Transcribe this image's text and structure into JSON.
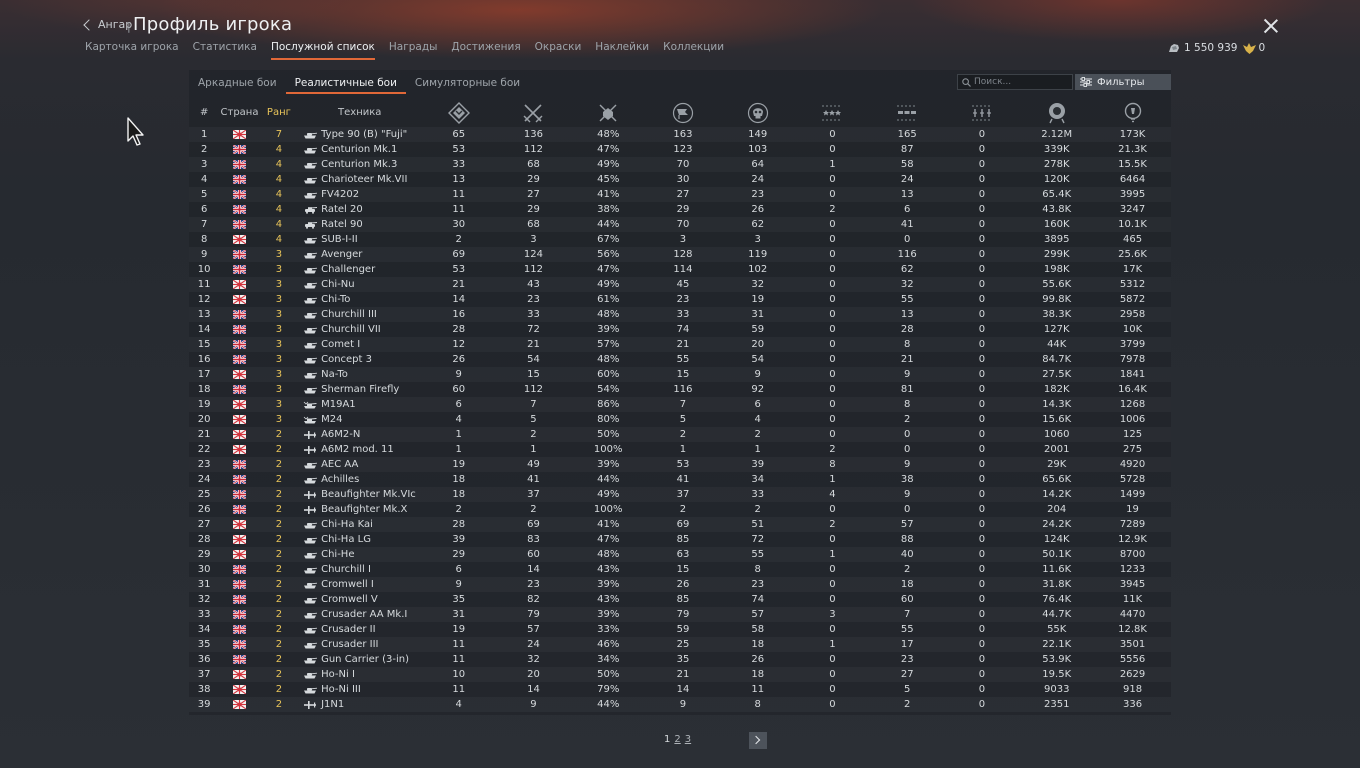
{
  "header": {
    "back_label": "Ангар",
    "separator": "|",
    "title": "Профиль игрока",
    "tabs": [
      "Карточка игрока",
      "Статистика",
      "Послужной список",
      "Награды",
      "Достижения",
      "Окраски",
      "Наклейки",
      "Коллекции"
    ],
    "active_tab": 2,
    "silver_lions": "1 550 939",
    "golden_eagles": "0"
  },
  "subtabs": {
    "items": [
      "Аркадные бои",
      "Реалистичные бои",
      "Симуляторные бои"
    ],
    "active": 1
  },
  "search": {
    "placeholder": "Поиск..."
  },
  "filters": {
    "label": "Фильтры"
  },
  "table": {
    "headers": {
      "num": "#",
      "country": "Страна",
      "rank": "Ранг",
      "vehicle": "Техника"
    },
    "stat_columns": [
      "battles-icon",
      "ground-kills-icon",
      "win-rate-icon",
      "deaths-icon",
      "respawns-icon",
      "air-kills-icon",
      "ground-targets-icon",
      "naval-kills-icon",
      "activity-icon",
      "research-icon"
    ],
    "rows": [
      {
        "n": "1",
        "c": "jp",
        "r": "7",
        "t": "tank",
        "v": "Type 90 (B) \"Fuji\"",
        "s": [
          "65",
          "136",
          "48%",
          "163",
          "149",
          "0",
          "165",
          "0",
          "2.12M",
          "173K"
        ]
      },
      {
        "n": "2",
        "c": "uk",
        "r": "4",
        "t": "tank",
        "v": "Centurion Mk.1",
        "s": [
          "53",
          "112",
          "47%",
          "123",
          "103",
          "0",
          "87",
          "0",
          "339K",
          "21.3K"
        ]
      },
      {
        "n": "3",
        "c": "uk",
        "r": "4",
        "t": "tank",
        "v": "Centurion Mk.3",
        "s": [
          "33",
          "68",
          "49%",
          "70",
          "64",
          "1",
          "58",
          "0",
          "278K",
          "15.5K"
        ]
      },
      {
        "n": "4",
        "c": "uk",
        "r": "4",
        "t": "tank",
        "v": "Charioteer Mk.VII",
        "s": [
          "13",
          "29",
          "45%",
          "30",
          "24",
          "0",
          "24",
          "0",
          "120K",
          "6464"
        ]
      },
      {
        "n": "5",
        "c": "uk",
        "r": "4",
        "t": "tank",
        "v": "FV4202",
        "s": [
          "11",
          "27",
          "41%",
          "27",
          "23",
          "0",
          "13",
          "0",
          "65.4K",
          "3995"
        ]
      },
      {
        "n": "6",
        "c": "uk",
        "r": "4",
        "t": "wheeled",
        "v": "Ratel 20",
        "s": [
          "11",
          "29",
          "38%",
          "29",
          "26",
          "2",
          "6",
          "0",
          "43.8K",
          "3247"
        ]
      },
      {
        "n": "7",
        "c": "uk",
        "r": "4",
        "t": "wheeled",
        "v": "Ratel 90",
        "s": [
          "30",
          "68",
          "44%",
          "70",
          "62",
          "0",
          "41",
          "0",
          "160K",
          "10.1K"
        ]
      },
      {
        "n": "8",
        "c": "jp",
        "r": "4",
        "t": "tank",
        "v": "SUB-I-II",
        "s": [
          "2",
          "3",
          "67%",
          "3",
          "3",
          "0",
          "0",
          "0",
          "3895",
          "465"
        ]
      },
      {
        "n": "9",
        "c": "uk",
        "r": "3",
        "t": "tank",
        "v": "Avenger",
        "s": [
          "69",
          "124",
          "56%",
          "128",
          "119",
          "0",
          "116",
          "0",
          "299K",
          "25.6K"
        ]
      },
      {
        "n": "10",
        "c": "uk",
        "r": "3",
        "t": "tank",
        "v": "Challenger",
        "s": [
          "53",
          "112",
          "47%",
          "114",
          "102",
          "0",
          "62",
          "0",
          "198K",
          "17K"
        ]
      },
      {
        "n": "11",
        "c": "jp",
        "r": "3",
        "t": "tank",
        "v": "Chi-Nu",
        "s": [
          "21",
          "43",
          "49%",
          "45",
          "32",
          "0",
          "32",
          "0",
          "55.6K",
          "5312"
        ]
      },
      {
        "n": "12",
        "c": "jp",
        "r": "3",
        "t": "tank",
        "v": "Chi-To",
        "s": [
          "14",
          "23",
          "61%",
          "23",
          "19",
          "0",
          "55",
          "0",
          "99.8K",
          "5872"
        ]
      },
      {
        "n": "13",
        "c": "uk",
        "r": "3",
        "t": "tank",
        "v": "Churchill III",
        "s": [
          "16",
          "33",
          "48%",
          "33",
          "31",
          "0",
          "13",
          "0",
          "38.3K",
          "2958"
        ]
      },
      {
        "n": "14",
        "c": "uk",
        "r": "3",
        "t": "tank",
        "v": "Churchill VII",
        "s": [
          "28",
          "72",
          "39%",
          "74",
          "59",
          "0",
          "28",
          "0",
          "127K",
          "10K"
        ]
      },
      {
        "n": "15",
        "c": "uk",
        "r": "3",
        "t": "tank",
        "v": "Comet I",
        "s": [
          "12",
          "21",
          "57%",
          "21",
          "20",
          "0",
          "8",
          "0",
          "44K",
          "3799"
        ]
      },
      {
        "n": "16",
        "c": "uk",
        "r": "3",
        "t": "tank",
        "v": "Concept 3",
        "s": [
          "26",
          "54",
          "48%",
          "55",
          "54",
          "0",
          "21",
          "0",
          "84.7K",
          "7978"
        ]
      },
      {
        "n": "17",
        "c": "jp",
        "r": "3",
        "t": "tank",
        "v": "Na-To",
        "s": [
          "9",
          "15",
          "60%",
          "15",
          "9",
          "0",
          "9",
          "0",
          "27.5K",
          "1841"
        ]
      },
      {
        "n": "18",
        "c": "uk",
        "r": "3",
        "t": "tank",
        "v": "Sherman Firefly",
        "s": [
          "60",
          "112",
          "54%",
          "116",
          "92",
          "0",
          "81",
          "0",
          "182K",
          "16.4K"
        ]
      },
      {
        "n": "19",
        "c": "jp",
        "r": "3",
        "t": "us-tank",
        "v": "M19A1",
        "s": [
          "6",
          "7",
          "86%",
          "7",
          "6",
          "0",
          "8",
          "0",
          "14.3K",
          "1268"
        ]
      },
      {
        "n": "20",
        "c": "jp",
        "r": "3",
        "t": "us-tank",
        "v": "M24",
        "s": [
          "4",
          "5",
          "80%",
          "5",
          "4",
          "0",
          "2",
          "0",
          "15.6K",
          "1006"
        ]
      },
      {
        "n": "21",
        "c": "jp",
        "r": "2",
        "t": "plane",
        "v": "A6M2-N",
        "s": [
          "1",
          "2",
          "50%",
          "2",
          "2",
          "0",
          "0",
          "0",
          "1060",
          "125"
        ]
      },
      {
        "n": "22",
        "c": "jp",
        "r": "2",
        "t": "plane",
        "v": "A6M2 mod. 11",
        "s": [
          "1",
          "1",
          "100%",
          "1",
          "1",
          "2",
          "0",
          "0",
          "2001",
          "275"
        ]
      },
      {
        "n": "23",
        "c": "uk",
        "r": "2",
        "t": "tank",
        "v": "AEC AA",
        "s": [
          "19",
          "49",
          "39%",
          "53",
          "39",
          "8",
          "9",
          "0",
          "29K",
          "4920"
        ]
      },
      {
        "n": "24",
        "c": "uk",
        "r": "2",
        "t": "tank",
        "v": "Achilles",
        "s": [
          "18",
          "41",
          "44%",
          "41",
          "34",
          "1",
          "38",
          "0",
          "65.6K",
          "5728"
        ]
      },
      {
        "n": "25",
        "c": "uk",
        "r": "2",
        "t": "plane",
        "v": "Beaufighter Mk.VIc",
        "s": [
          "18",
          "37",
          "49%",
          "37",
          "33",
          "4",
          "9",
          "0",
          "14.2K",
          "1499"
        ]
      },
      {
        "n": "26",
        "c": "uk",
        "r": "2",
        "t": "plane",
        "v": "Beaufighter Mk.X",
        "s": [
          "2",
          "2",
          "100%",
          "2",
          "2",
          "0",
          "0",
          "0",
          "204",
          "19"
        ]
      },
      {
        "n": "27",
        "c": "jp",
        "r": "2",
        "t": "tank",
        "v": "Chi-Ha Kai",
        "s": [
          "28",
          "69",
          "41%",
          "69",
          "51",
          "2",
          "57",
          "0",
          "24.2K",
          "7289"
        ]
      },
      {
        "n": "28",
        "c": "jp",
        "r": "2",
        "t": "tank",
        "v": "Chi-Ha LG",
        "s": [
          "39",
          "83",
          "47%",
          "85",
          "72",
          "0",
          "88",
          "0",
          "124K",
          "12.9K"
        ]
      },
      {
        "n": "29",
        "c": "jp",
        "r": "2",
        "t": "tank",
        "v": "Chi-He",
        "s": [
          "29",
          "60",
          "48%",
          "63",
          "55",
          "1",
          "40",
          "0",
          "50.1K",
          "8700"
        ]
      },
      {
        "n": "30",
        "c": "uk",
        "r": "2",
        "t": "tank",
        "v": "Churchill I",
        "s": [
          "6",
          "14",
          "43%",
          "15",
          "8",
          "0",
          "2",
          "0",
          "11.6K",
          "1233"
        ]
      },
      {
        "n": "31",
        "c": "uk",
        "r": "2",
        "t": "tank",
        "v": "Cromwell I",
        "s": [
          "9",
          "23",
          "39%",
          "26",
          "23",
          "0",
          "18",
          "0",
          "31.8K",
          "3945"
        ]
      },
      {
        "n": "32",
        "c": "uk",
        "r": "2",
        "t": "tank",
        "v": "Cromwell V",
        "s": [
          "35",
          "82",
          "43%",
          "85",
          "74",
          "0",
          "60",
          "0",
          "76.4K",
          "11K"
        ]
      },
      {
        "n": "33",
        "c": "uk",
        "r": "2",
        "t": "tank",
        "v": "Crusader AA Mk.I",
        "s": [
          "31",
          "79",
          "39%",
          "79",
          "57",
          "3",
          "7",
          "0",
          "44.7K",
          "4470"
        ]
      },
      {
        "n": "34",
        "c": "uk",
        "r": "2",
        "t": "tank",
        "v": "Crusader II",
        "s": [
          "19",
          "57",
          "33%",
          "59",
          "58",
          "0",
          "55",
          "0",
          "55K",
          "12.8K"
        ]
      },
      {
        "n": "35",
        "c": "uk",
        "r": "2",
        "t": "tank",
        "v": "Crusader III",
        "s": [
          "11",
          "24",
          "46%",
          "25",
          "18",
          "1",
          "17",
          "0",
          "22.1K",
          "3501"
        ]
      },
      {
        "n": "36",
        "c": "uk",
        "r": "2",
        "t": "tank",
        "v": "Gun Carrier (3-in)",
        "s": [
          "11",
          "32",
          "34%",
          "35",
          "26",
          "0",
          "23",
          "0",
          "53.9K",
          "5556"
        ]
      },
      {
        "n": "37",
        "c": "jp",
        "r": "2",
        "t": "tank",
        "v": "Ho-Ni I",
        "s": [
          "10",
          "20",
          "50%",
          "21",
          "18",
          "0",
          "27",
          "0",
          "19.5K",
          "2629"
        ]
      },
      {
        "n": "38",
        "c": "jp",
        "r": "2",
        "t": "tank",
        "v": "Ho-Ni III",
        "s": [
          "11",
          "14",
          "79%",
          "14",
          "11",
          "0",
          "5",
          "0",
          "9033",
          "918"
        ]
      },
      {
        "n": "39",
        "c": "jp",
        "r": "2",
        "t": "plane",
        "v": "J1N1",
        "s": [
          "4",
          "9",
          "44%",
          "9",
          "8",
          "0",
          "2",
          "0",
          "2351",
          "336"
        ]
      }
    ]
  },
  "pagination": {
    "pages": [
      "1",
      "2",
      "3"
    ],
    "current": 0
  },
  "colors": {
    "accent": "#e06838",
    "rank": "#e8c45a",
    "background": "#262a30"
  }
}
